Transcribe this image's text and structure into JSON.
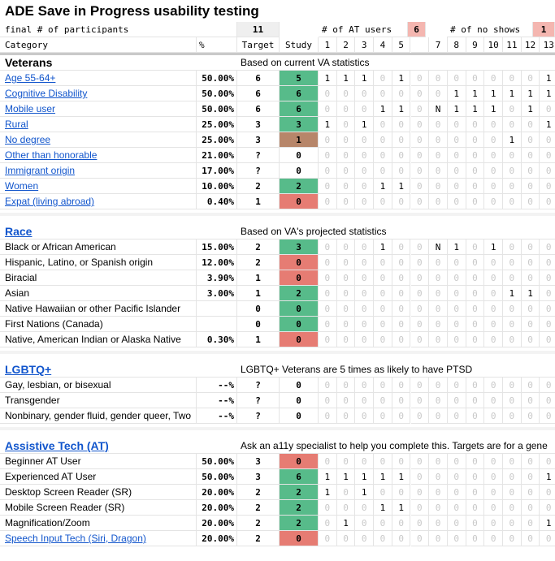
{
  "title": "ADE Save in Progress usability testing",
  "header1": {
    "label": "final # of participants",
    "participants_total": "11",
    "at_users_label": "# of AT users",
    "at_users_value": "6",
    "no_shows_label": "# of no shows",
    "no_shows_value": "1"
  },
  "header2": {
    "category": "Category",
    "percent": "%",
    "target": "Target",
    "study": "Study",
    "participant_numbers": [
      "1",
      "2",
      "3",
      "4",
      "5",
      "",
      "7",
      "8",
      "9",
      "10",
      "11",
      "12",
      "13"
    ]
  },
  "colors": {
    "green": "#57bb8a",
    "red": "#e67c73",
    "brown": "#b7866a",
    "link": "#1155cc"
  },
  "sections": [
    {
      "title": "Veterans",
      "title_is_link": false,
      "note": "Based on current VA statistics",
      "rows": [
        {
          "label": "Age 55-64+",
          "link": true,
          "pct": "50.00%",
          "target": "6",
          "study": "5",
          "status": "green",
          "cells": [
            "1",
            "1",
            "1",
            "0",
            "1",
            "0",
            "0",
            "0",
            "0",
            "0",
            "0",
            "0",
            "1"
          ]
        },
        {
          "label": "Cognitive Disability",
          "link": true,
          "pct": "50.00%",
          "target": "6",
          "study": "6",
          "status": "green",
          "cells": [
            "0",
            "0",
            "0",
            "0",
            "0",
            "0",
            "0",
            "1",
            "1",
            "1",
            "1",
            "1",
            "1"
          ]
        },
        {
          "label": "Mobile user",
          "link": true,
          "pct": "50.00%",
          "target": "6",
          "study": "6",
          "status": "green",
          "cells": [
            "0",
            "0",
            "0",
            "1",
            "1",
            "0",
            "N",
            "1",
            "1",
            "1",
            "0",
            "1",
            "0"
          ]
        },
        {
          "label": "Rural",
          "link": true,
          "pct": "25.00%",
          "target": "3",
          "study": "3",
          "status": "green",
          "cells": [
            "1",
            "0",
            "1",
            "0",
            "0",
            "0",
            "0",
            "0",
            "0",
            "0",
            "0",
            "0",
            "1"
          ]
        },
        {
          "label": "No degree",
          "link": true,
          "pct": "25.00%",
          "target": "3",
          "study": "1",
          "status": "brown",
          "cells": [
            "0",
            "0",
            "0",
            "0",
            "0",
            "0",
            "0",
            "0",
            "0",
            "0",
            "1",
            "0",
            "0"
          ]
        },
        {
          "label": "Other than honorable",
          "link": true,
          "pct": "21.00%",
          "target": "?",
          "study": "0",
          "status": "",
          "cells": [
            "0",
            "0",
            "0",
            "0",
            "0",
            "0",
            "0",
            "0",
            "0",
            "0",
            "0",
            "0",
            "0"
          ]
        },
        {
          "label": "Immigrant origin",
          "link": true,
          "pct": "17.00%",
          "target": "?",
          "study": "0",
          "status": "",
          "cells": [
            "0",
            "0",
            "0",
            "0",
            "0",
            "0",
            "0",
            "0",
            "0",
            "0",
            "0",
            "0",
            "0"
          ]
        },
        {
          "label": "Women",
          "link": true,
          "pct": "10.00%",
          "target": "2",
          "study": "2",
          "status": "green",
          "cells": [
            "0",
            "0",
            "0",
            "1",
            "1",
            "0",
            "0",
            "0",
            "0",
            "0",
            "0",
            "0",
            "0"
          ]
        },
        {
          "label": "Expat (living abroad)",
          "link": true,
          "pct": "0.40%",
          "target": "1",
          "study": "0",
          "status": "red",
          "cells": [
            "0",
            "0",
            "0",
            "0",
            "0",
            "0",
            "0",
            "0",
            "0",
            "0",
            "0",
            "0",
            "0"
          ]
        }
      ]
    },
    {
      "title": "Race",
      "title_is_link": true,
      "note": "Based on VA's projected statistics",
      "rows": [
        {
          "label": "Black or African American",
          "link": false,
          "pct": "15.00%",
          "target": "2",
          "study": "3",
          "status": "green",
          "cells": [
            "0",
            "0",
            "0",
            "1",
            "0",
            "0",
            "N",
            "1",
            "0",
            "1",
            "0",
            "0",
            "0"
          ]
        },
        {
          "label": "Hispanic, Latino, or Spanish origin",
          "link": false,
          "pct": "12.00%",
          "target": "2",
          "study": "0",
          "status": "red",
          "cells": [
            "0",
            "0",
            "0",
            "0",
            "0",
            "0",
            "0",
            "0",
            "0",
            "0",
            "0",
            "0",
            "0"
          ]
        },
        {
          "label": "Biracial",
          "link": false,
          "pct": "3.90%",
          "target": "1",
          "study": "0",
          "status": "red",
          "cells": [
            "0",
            "0",
            "0",
            "0",
            "0",
            "0",
            "0",
            "0",
            "0",
            "0",
            "0",
            "0",
            "0"
          ]
        },
        {
          "label": "Asian",
          "link": false,
          "pct": "3.00%",
          "target": "1",
          "study": "2",
          "status": "green",
          "cells": [
            "0",
            "0",
            "0",
            "0",
            "0",
            "0",
            "0",
            "0",
            "0",
            "0",
            "1",
            "1",
            "0"
          ]
        },
        {
          "label": "Native Hawaiian or other Pacific Islander",
          "link": false,
          "pct": "",
          "target": "0",
          "study": "0",
          "status": "green",
          "cells": [
            "0",
            "0",
            "0",
            "0",
            "0",
            "0",
            "0",
            "0",
            "0",
            "0",
            "0",
            "0",
            "0"
          ]
        },
        {
          "label": "First Nations (Canada)",
          "link": false,
          "pct": "",
          "target": "0",
          "study": "0",
          "status": "green",
          "cells": [
            "0",
            "0",
            "0",
            "0",
            "0",
            "0",
            "0",
            "0",
            "0",
            "0",
            "0",
            "0",
            "0"
          ]
        },
        {
          "label": "Native, American Indian or Alaska Native",
          "link": false,
          "pct": "0.30%",
          "target": "1",
          "study": "0",
          "status": "red",
          "cells": [
            "0",
            "0",
            "0",
            "0",
            "0",
            "0",
            "0",
            "0",
            "0",
            "0",
            "0",
            "0",
            "0"
          ]
        }
      ]
    },
    {
      "title": "LGBTQ+",
      "title_is_link": true,
      "note": "LGBTQ+ Veterans are 5 times as likely to have PTSD",
      "rows": [
        {
          "label": "Gay, lesbian, or bisexual",
          "link": false,
          "pct": "--%",
          "target": "?",
          "study": "0",
          "status": "",
          "cells": [
            "0",
            "0",
            "0",
            "0",
            "0",
            "0",
            "0",
            "0",
            "0",
            "0",
            "0",
            "0",
            "0"
          ]
        },
        {
          "label": "Transgender",
          "link": false,
          "pct": "--%",
          "target": "?",
          "study": "0",
          "status": "",
          "cells": [
            "0",
            "0",
            "0",
            "0",
            "0",
            "0",
            "0",
            "0",
            "0",
            "0",
            "0",
            "0",
            "0"
          ]
        },
        {
          "label": "Nonbinary, gender fluid, gender queer, Two",
          "link": false,
          "pct": "--%",
          "target": "?",
          "study": "0",
          "status": "",
          "cells": [
            "0",
            "0",
            "0",
            "0",
            "0",
            "0",
            "0",
            "0",
            "0",
            "0",
            "0",
            "0",
            "0"
          ]
        }
      ]
    },
    {
      "title": "Assistive Tech (AT)",
      "title_is_link": true,
      "note": "Ask an a11y specialist to help you complete this. Targets are for a gene",
      "rows": [
        {
          "label": "Beginner AT User",
          "link": false,
          "pct": "50.00%",
          "target": "3",
          "study": "0",
          "status": "red",
          "cells": [
            "0",
            "0",
            "0",
            "0",
            "0",
            "0",
            "0",
            "0",
            "0",
            "0",
            "0",
            "0",
            "0"
          ]
        },
        {
          "label": "Experienced AT User",
          "link": false,
          "pct": "50.00%",
          "target": "3",
          "study": "6",
          "status": "green",
          "cells": [
            "1",
            "1",
            "1",
            "1",
            "1",
            "0",
            "0",
            "0",
            "0",
            "0",
            "0",
            "0",
            "1"
          ]
        },
        {
          "label": "Desktop Screen Reader (SR)",
          "link": false,
          "pct": "20.00%",
          "target": "2",
          "study": "2",
          "status": "green",
          "cells": [
            "1",
            "0",
            "1",
            "0",
            "0",
            "0",
            "0",
            "0",
            "0",
            "0",
            "0",
            "0",
            "0"
          ]
        },
        {
          "label": "Mobile Screen Reader (SR)",
          "link": false,
          "pct": "20.00%",
          "target": "2",
          "study": "2",
          "status": "green",
          "cells": [
            "0",
            "0",
            "0",
            "1",
            "1",
            "0",
            "0",
            "0",
            "0",
            "0",
            "0",
            "0",
            "0"
          ]
        },
        {
          "label": "Magnification/Zoom",
          "link": false,
          "pct": "20.00%",
          "target": "2",
          "study": "2",
          "status": "green",
          "cells": [
            "0",
            "1",
            "0",
            "0",
            "0",
            "0",
            "0",
            "0",
            "0",
            "0",
            "0",
            "0",
            "1"
          ]
        },
        {
          "label": "Speech Input Tech (Siri, Dragon)",
          "link": true,
          "pct": "20.00%",
          "target": "2",
          "study": "0",
          "status": "red",
          "cells": [
            "0",
            "0",
            "0",
            "0",
            "0",
            "0",
            "0",
            "0",
            "0",
            "0",
            "0",
            "0",
            "0"
          ]
        }
      ]
    }
  ]
}
